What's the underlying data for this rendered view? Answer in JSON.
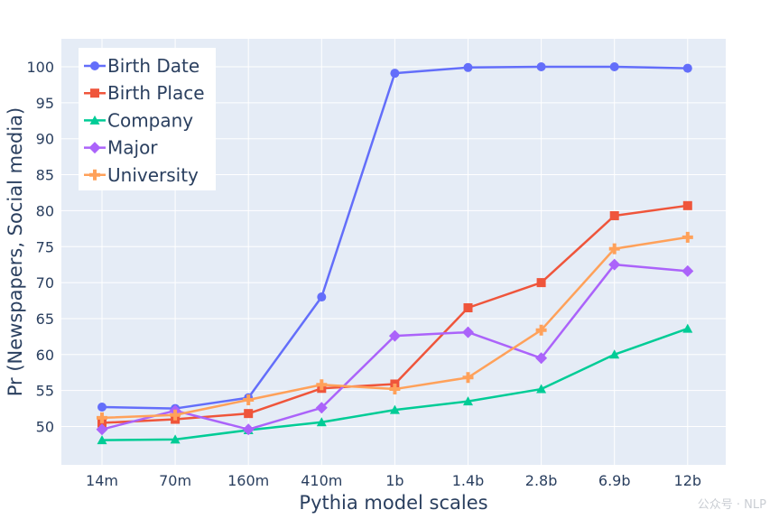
{
  "chart_data": {
    "type": "line",
    "xlabel": "Pythia model scales",
    "ylabel": "Pr (Newspapers, Social media)",
    "categories": [
      "14m",
      "70m",
      "160m",
      "410m",
      "1b",
      "1.4b",
      "2.8b",
      "6.9b",
      "12b"
    ],
    "ylim": [
      44,
      104
    ],
    "yticks": [
      50,
      55,
      60,
      65,
      70,
      75,
      80,
      85,
      90,
      95,
      100
    ],
    "grid": true,
    "legend_position": "top-left",
    "series": [
      {
        "name": "Birth Date",
        "color": "#636efa",
        "marker": "circle",
        "values": [
          52.7,
          52.5,
          54.0,
          68.0,
          99.1,
          99.9,
          100.0,
          100.0,
          99.8
        ]
      },
      {
        "name": "Birth Place",
        "color": "#ef553b",
        "marker": "square",
        "values": [
          50.5,
          51.0,
          51.8,
          55.3,
          55.9,
          66.5,
          70.0,
          79.3,
          80.7
        ]
      },
      {
        "name": "Company",
        "color": "#00cc96",
        "marker": "triangle-up",
        "values": [
          48.1,
          48.2,
          49.5,
          50.6,
          52.3,
          53.5,
          55.2,
          60.0,
          63.6
        ]
      },
      {
        "name": "Major",
        "color": "#ab63fa",
        "marker": "diamond",
        "values": [
          49.6,
          52.2,
          49.6,
          52.6,
          62.6,
          63.1,
          59.5,
          72.5,
          71.6
        ]
      },
      {
        "name": "University",
        "color": "#ffa15a",
        "marker": "cross",
        "values": [
          51.2,
          51.6,
          53.7,
          55.8,
          55.2,
          56.8,
          63.4,
          74.7,
          76.3
        ]
      }
    ]
  },
  "watermark": {
    "text": "公众号 · NLP"
  }
}
